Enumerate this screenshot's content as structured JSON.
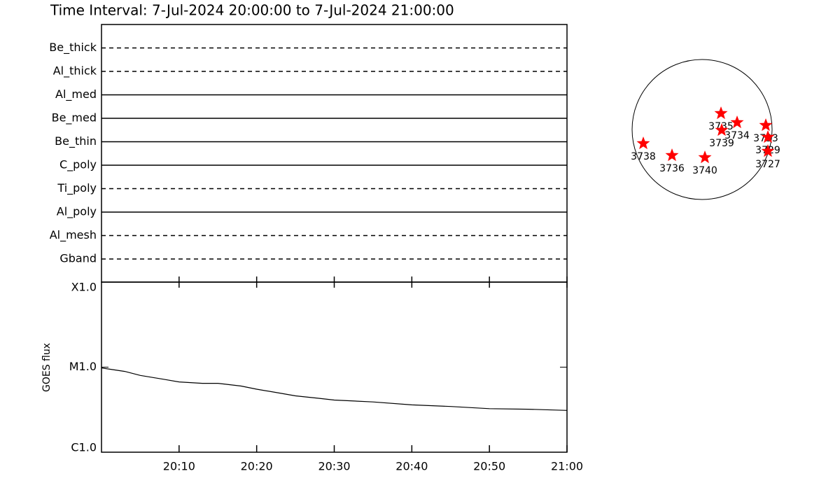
{
  "chart_data": [
    {
      "type": "filter-timeline",
      "title": "Time Interval:  7-Jul-2024 20:00:00 to  7-Jul-2024 21:00:00",
      "categories": [
        "Be_thick",
        "Al_thick",
        "Al_med",
        "Be_med",
        "Be_thin",
        "C_poly",
        "Ti_poly",
        "Al_poly",
        "Al_mesh",
        "Gband"
      ],
      "line_styles": [
        "dashed",
        "dashed",
        "solid",
        "solid",
        "solid",
        "solid",
        "dashed",
        "solid",
        "dashed",
        "dashed"
      ],
      "color": "#000000"
    },
    {
      "type": "line",
      "ylabel": "GOES flux",
      "log_scale": true,
      "x": [
        "20:00",
        "20:03",
        "20:05",
        "20:08",
        "20:10",
        "20:13",
        "20:15",
        "20:16",
        "20:18",
        "20:20",
        "20:23",
        "20:25",
        "20:28",
        "20:30",
        "20:35",
        "20:40",
        "20:45",
        "20:50",
        "20:55",
        "21:00"
      ],
      "values": [
        9.8e-06,
        8.9e-06,
        8e-06,
        7.2e-06,
        6.7e-06,
        6.45e-06,
        6.45e-06,
        6.3e-06,
        6e-06,
        5.5e-06,
        4.95e-06,
        4.6e-06,
        4.3e-06,
        4.1e-06,
        3.9e-06,
        3.6e-06,
        3.45e-06,
        3.25e-06,
        3.2e-06,
        3.1e-06
      ],
      "color": "#000000",
      "xlim": [
        "20:00",
        "21:00"
      ],
      "xticks": [
        "20:10",
        "20:20",
        "20:30",
        "20:40",
        "20:50",
        "21:00"
      ],
      "ylim": [
        1e-06,
        0.0001
      ],
      "yticks": [
        {
          "value": 1e-06,
          "label": "C1.0"
        },
        {
          "value": 1e-05,
          "label": "M1.0"
        },
        {
          "value": 0.0001,
          "label": "X1.0"
        }
      ]
    },
    {
      "type": "scatter",
      "labels": [
        "3735",
        "3734",
        "3739",
        "3733",
        "3729",
        "3727",
        "3738",
        "3736",
        "3740"
      ],
      "x": [
        0.27,
        0.5,
        0.28,
        0.91,
        0.94,
        0.94,
        -0.84,
        -0.43,
        0.04
      ],
      "values": [
        0.23,
        0.1,
        -0.01,
        0.06,
        -0.11,
        -0.31,
        -0.2,
        -0.37,
        -0.4
      ],
      "color": "#ff0000"
    }
  ]
}
